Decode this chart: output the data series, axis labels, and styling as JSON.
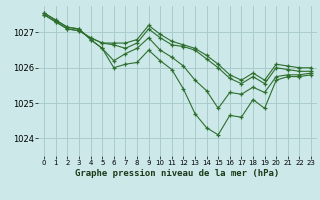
{
  "background_color": "#cce8e8",
  "grid_color": "#aacccc",
  "line_color": "#2d6e2d",
  "title": "Graphe pression niveau de la mer (hPa)",
  "xlim": [
    -0.5,
    23.5
  ],
  "ylim": [
    1023.5,
    1027.75
  ],
  "yticks": [
    1024,
    1025,
    1026,
    1027
  ],
  "xticks": [
    0,
    1,
    2,
    3,
    4,
    5,
    6,
    7,
    8,
    9,
    10,
    11,
    12,
    13,
    14,
    15,
    16,
    17,
    18,
    19,
    20,
    21,
    22,
    23
  ],
  "series": [
    [
      1027.5,
      1027.3,
      1027.1,
      1027.05,
      1026.85,
      1026.7,
      1026.65,
      1026.55,
      1026.7,
      1027.1,
      1026.85,
      1026.65,
      1026.6,
      1026.5,
      1026.25,
      1026.0,
      1025.7,
      1025.55,
      1025.75,
      1025.55,
      1026.0,
      1025.95,
      1025.9,
      1025.9
    ],
    [
      1027.5,
      1027.3,
      1027.1,
      1027.05,
      1026.85,
      1026.7,
      1026.7,
      1026.7,
      1026.8,
      1027.2,
      1026.95,
      1026.75,
      1026.65,
      1026.55,
      1026.35,
      1026.1,
      1025.8,
      1025.65,
      1025.85,
      1025.65,
      1026.1,
      1026.05,
      1026.0,
      1026.0
    ],
    [
      1027.55,
      1027.35,
      1027.15,
      1027.1,
      1026.8,
      1026.55,
      1026.2,
      1026.4,
      1026.55,
      1026.85,
      1026.5,
      1026.3,
      1026.05,
      1025.65,
      1025.35,
      1024.85,
      1025.3,
      1025.25,
      1025.45,
      1025.3,
      1025.75,
      1025.8,
      1025.8,
      1025.85
    ],
    [
      1027.55,
      1027.35,
      1027.15,
      1027.1,
      1026.8,
      1026.55,
      1026.0,
      1026.1,
      1026.15,
      1026.5,
      1026.2,
      1025.95,
      1025.4,
      1024.7,
      1024.3,
      1024.1,
      1024.65,
      1024.6,
      1025.1,
      1024.85,
      1025.65,
      1025.75,
      1025.75,
      1025.8
    ]
  ]
}
